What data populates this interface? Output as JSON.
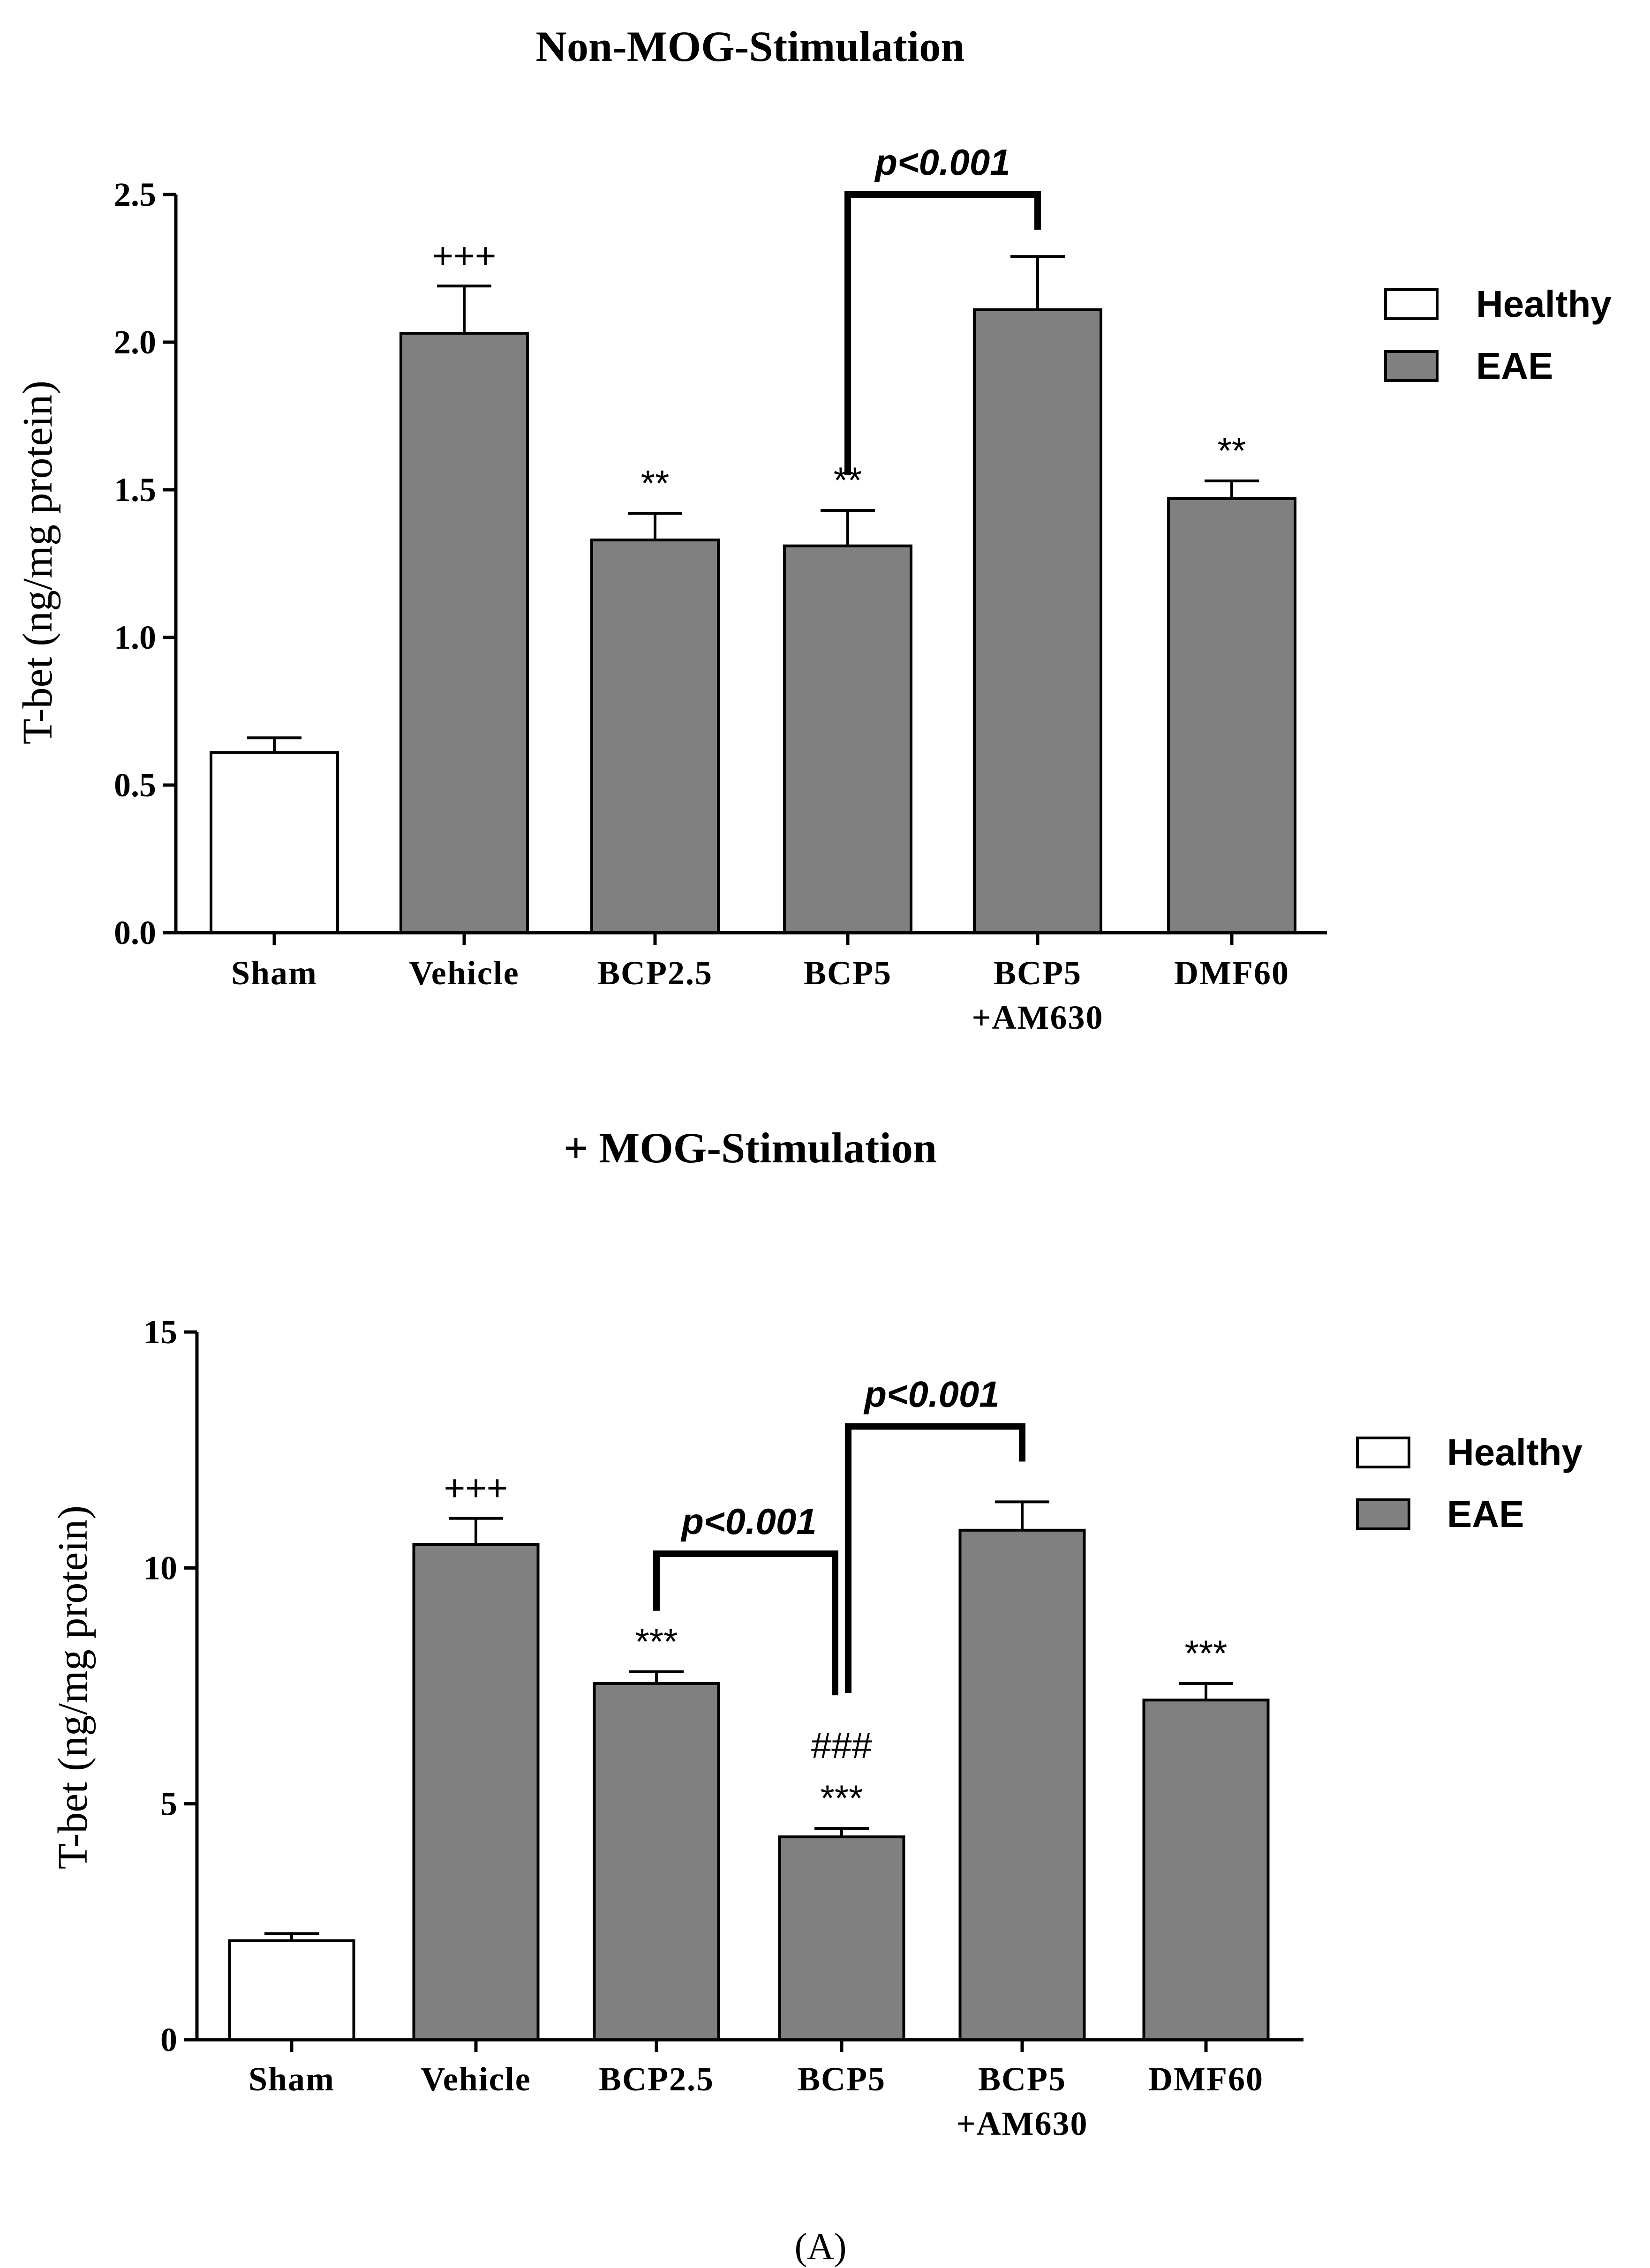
{
  "caption": "(A)",
  "colors": {
    "healthy": "#ffffff",
    "eae": "#808080",
    "stroke": "#000000"
  },
  "chart_data": [
    {
      "type": "bar",
      "title": "Non-MOG-Stimulation",
      "ylabel": "T-bet (ng/mg protein)",
      "xlabel": "",
      "ylim": [
        0,
        2.5
      ],
      "yticks": [
        "0.0",
        "0.5",
        "1.0",
        "1.5",
        "2.0",
        "2.5"
      ],
      "categories": [
        [
          "Sham"
        ],
        [
          "Vehicle"
        ],
        [
          "BCP2.5"
        ],
        [
          "BCP5"
        ],
        [
          "BCP5",
          "+AM630"
        ],
        [
          "DMF60"
        ]
      ],
      "groups": [
        "Healthy",
        "EAE",
        "EAE",
        "EAE",
        "EAE",
        "EAE"
      ],
      "values": [
        0.61,
        2.03,
        1.33,
        1.31,
        2.11,
        1.47
      ],
      "errors": [
        0.05,
        0.16,
        0.09,
        0.12,
        0.18,
        0.06
      ],
      "annotations": [
        "",
        "+++",
        "**",
        "**",
        "",
        "**"
      ],
      "extra_annotations": [
        "",
        "",
        "",
        "",
        "",
        ""
      ],
      "legend": [
        "Healthy",
        "EAE"
      ],
      "brackets": [
        {
          "from": 3,
          "to": 4,
          "label": "p<0.001",
          "level": 2.5
        }
      ]
    },
    {
      "type": "bar",
      "title": "+ MOG-Stimulation",
      "ylabel": "T-bet (ng/mg protein)",
      "xlabel": "",
      "ylim": [
        0,
        15
      ],
      "yticks": [
        "0",
        "5",
        "10",
        "15"
      ],
      "categories": [
        [
          "Sham"
        ],
        [
          "Vehicle"
        ],
        [
          "BCP2.5"
        ],
        [
          "BCP5"
        ],
        [
          "BCP5",
          "+AM630"
        ],
        [
          "DMF60"
        ]
      ],
      "groups": [
        "Healthy",
        "EAE",
        "EAE",
        "EAE",
        "EAE",
        "EAE"
      ],
      "values": [
        2.1,
        10.5,
        7.55,
        4.3,
        10.8,
        7.2
      ],
      "errors": [
        0.15,
        0.55,
        0.25,
        0.18,
        0.6,
        0.35
      ],
      "annotations": [
        "",
        "+++",
        "***",
        "***",
        "",
        "***"
      ],
      "extra_annotations": [
        "",
        "",
        "",
        "###",
        "",
        ""
      ],
      "legend": [
        "Healthy",
        "EAE"
      ],
      "brackets": [
        {
          "from": 2,
          "to": 3,
          "label": "p<0.001",
          "level": 10.3
        },
        {
          "from": 3,
          "to": 4,
          "label": "p<0.001",
          "level": 13.0
        }
      ]
    }
  ]
}
